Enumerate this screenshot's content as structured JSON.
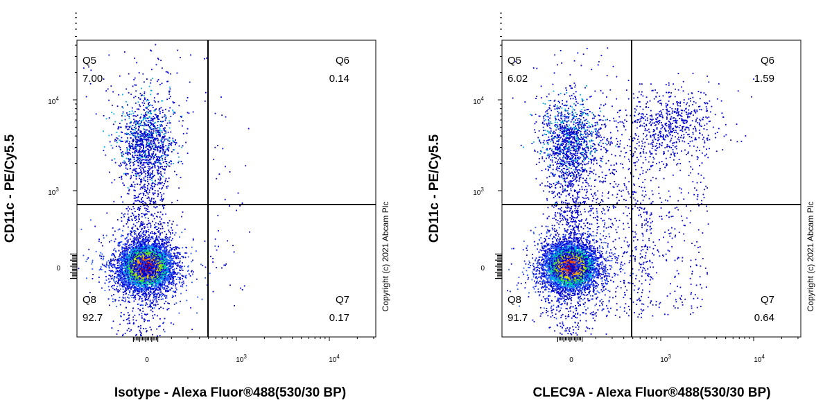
{
  "chart_data": [
    {
      "type": "scatter",
      "title": "",
      "xlabel": "Isotype - Alexa Fluor®488(530/30 BP)",
      "ylabel": "CD11c - PE/Cy5.5",
      "x_ticks": [
        "0",
        "10^3",
        "10^4"
      ],
      "y_ticks": [
        "0",
        "10^3",
        "10^4"
      ],
      "scale": "biexponential",
      "quadrants": [
        {
          "name": "Q5",
          "value": "7.00",
          "position": "top-left"
        },
        {
          "name": "Q6",
          "value": "0.14",
          "position": "top-right"
        },
        {
          "name": "Q8",
          "value": "92.7",
          "position": "bottom-left"
        },
        {
          "name": "Q7",
          "value": "0.17",
          "position": "bottom-right"
        }
      ],
      "populations": [
        {
          "label": "CD11c- negative cluster",
          "x": 0,
          "y": 0,
          "fraction": 0.88
        },
        {
          "label": "CD11c+ cluster",
          "x": 0,
          "y": 4000,
          "fraction": 0.07
        }
      ],
      "copyright": "Copyright (c) 2021 Abcam Plc"
    },
    {
      "type": "scatter",
      "title": "",
      "xlabel": "CLEC9A - Alexa Fluor®488(530/30 BP)",
      "ylabel": "CD11c - PE/Cy5.5",
      "x_ticks": [
        "0",
        "10^3",
        "10^4"
      ],
      "y_ticks": [
        "0",
        "10^3",
        "10^4"
      ],
      "scale": "biexponential",
      "quadrants": [
        {
          "name": "Q5",
          "value": "6.02",
          "position": "top-left"
        },
        {
          "name": "Q6",
          "value": "1.59",
          "position": "top-right"
        },
        {
          "name": "Q8",
          "value": "91.7",
          "position": "bottom-left"
        },
        {
          "name": "Q7",
          "value": "0.64",
          "position": "bottom-right"
        }
      ],
      "populations": [
        {
          "label": "CD11c- negative cluster",
          "x": 0,
          "y": 0,
          "fraction": 0.88
        },
        {
          "label": "CD11c+ cluster",
          "x": 0,
          "y": 4000,
          "fraction": 0.06
        },
        {
          "label": "CLEC9A+ CD11c+ cluster",
          "x": 1500,
          "y": 4000,
          "fraction": 0.016
        }
      ],
      "copyright": "Copyright (c) 2021 Abcam Plc"
    }
  ]
}
